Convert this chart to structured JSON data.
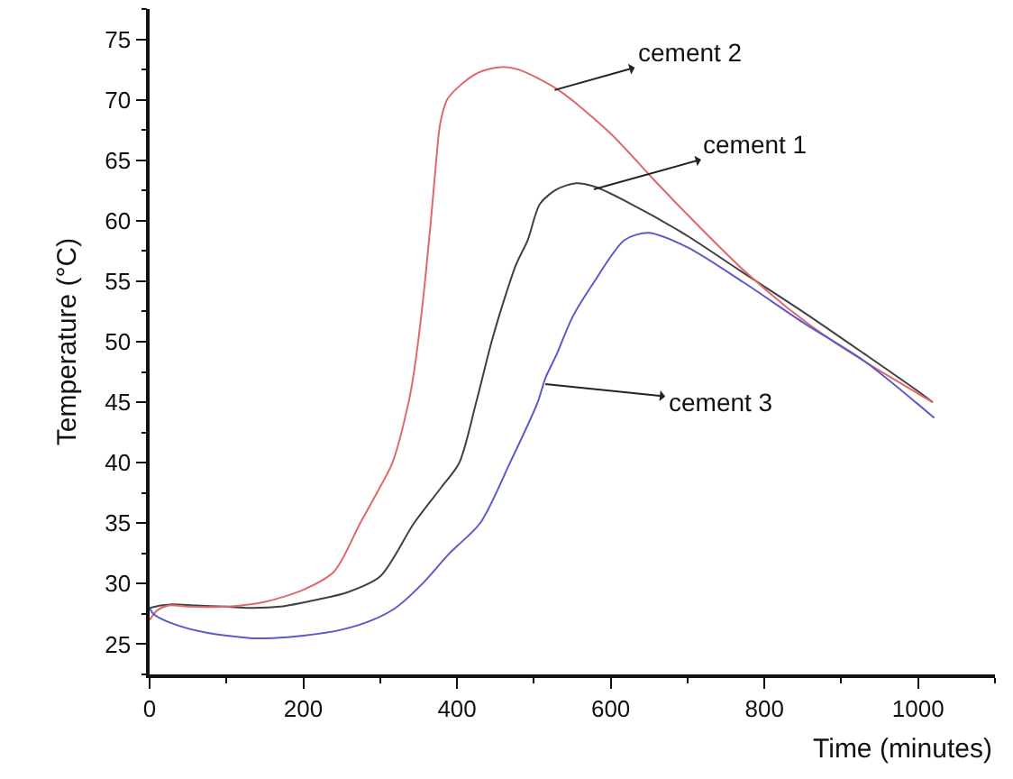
{
  "chart_data": {
    "type": "line",
    "xlabel": "Time (minutes)",
    "ylabel": "Temperature (°C)",
    "xlim": [
      0,
      1100
    ],
    "xticks": [
      0,
      200,
      400,
      600,
      800,
      1000
    ],
    "ylim": [
      22.5,
      77.5
    ],
    "yticks": [
      25,
      30,
      35,
      40,
      45,
      50,
      55,
      60,
      65,
      70,
      75
    ],
    "grid": false,
    "legend": false,
    "marker": "none",
    "line_style": "solid",
    "series": [
      {
        "color": "#404040",
        "x": [
          0,
          15,
          30,
          60,
          100,
          130,
          170,
          220,
          258,
          300,
          344,
          380,
          403,
          425,
          445,
          461,
          477,
          492,
          508,
          530,
          555,
          580,
          620,
          696,
          770,
          852,
          930,
          1000,
          1019
        ],
        "values": [
          28,
          28.2,
          28.3,
          28.2,
          28.1,
          28,
          28.1,
          28.7,
          29.3,
          30.6,
          35,
          38,
          40,
          45,
          50,
          53.4,
          56.4,
          58.4,
          61.4,
          62.6,
          63.1,
          62.8,
          61.6,
          58.9,
          55.8,
          52.4,
          49,
          45.9,
          45
        ]
      },
      {
        "color": "#e06868",
        "x": [
          0,
          10,
          25,
          50,
          100,
          150,
          200,
          240,
          274,
          300,
          316,
          337,
          344,
          355,
          366,
          373,
          378,
          387,
          410,
          430,
          457,
          480,
          532,
          600,
          656,
          720,
          773,
          830,
          890,
          950,
          1019
        ],
        "values": [
          27,
          27.8,
          28.2,
          28.1,
          28.1,
          28.5,
          29.5,
          31,
          35,
          38,
          40,
          45,
          47.5,
          53,
          60,
          65,
          68,
          70,
          71.5,
          72.3,
          72.7,
          72.5,
          70.8,
          67.2,
          63.4,
          59.2,
          55.9,
          52.8,
          50,
          47.6,
          45
        ]
      },
      {
        "color": "#5a5acc",
        "x": [
          0,
          5,
          30,
          70,
          130,
          160,
          200,
          250,
          290,
          320,
          355,
          390,
          430,
          469,
          505,
          515,
          530,
          550,
          578,
          618,
          649,
          700,
          773,
          850,
          930,
          1021
        ],
        "values": [
          28,
          27.5,
          26.7,
          26,
          25.5,
          25.5,
          25.7,
          26.2,
          27,
          28,
          30,
          32.5,
          35,
          40,
          45,
          47,
          49,
          52,
          54.9,
          58.4,
          59,
          57.8,
          54.9,
          51.6,
          48.4,
          43.7
        ]
      }
    ],
    "annotations": [
      {
        "text": "cement 2",
        "x": 527,
        "y": 70.8
      },
      {
        "text": "cement 1",
        "x": 578,
        "y": 62.6
      },
      {
        "text": "cement 3",
        "x": 515,
        "y": 46.5
      }
    ]
  }
}
